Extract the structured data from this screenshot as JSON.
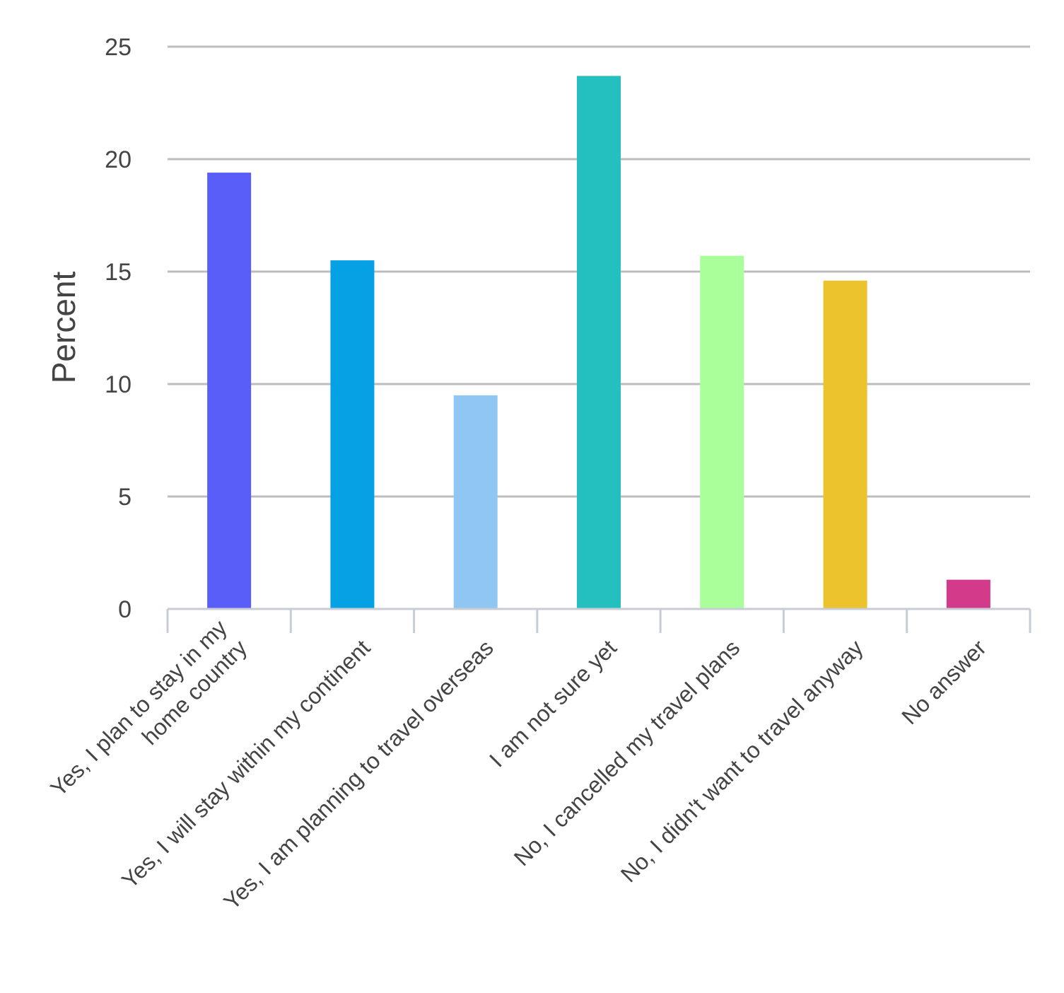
{
  "chart_data": {
    "type": "bar",
    "ylabel": "Percent",
    "ylim": [
      0,
      25
    ],
    "yticks": [
      0,
      5,
      10,
      15,
      20,
      25
    ],
    "grid": true,
    "categories": [
      [
        "Yes, I plan to stay in my",
        "home country"
      ],
      [
        "Yes, I will stay within my continent"
      ],
      [
        "Yes, I am planning to travel overseas"
      ],
      [
        "I am not sure yet"
      ],
      [
        "No, I cancelled my travel plans"
      ],
      [
        "No, I didn't want to travel anyway"
      ],
      [
        "No answer"
      ]
    ],
    "values": [
      19.4,
      15.5,
      9.5,
      23.7,
      15.7,
      14.6,
      1.3
    ],
    "colors": [
      "#5a5ef8",
      "#06a0e4",
      "#90c6f2",
      "#24bfbf",
      "#aaff9a",
      "#ecc22d",
      "#d43a8a"
    ]
  }
}
